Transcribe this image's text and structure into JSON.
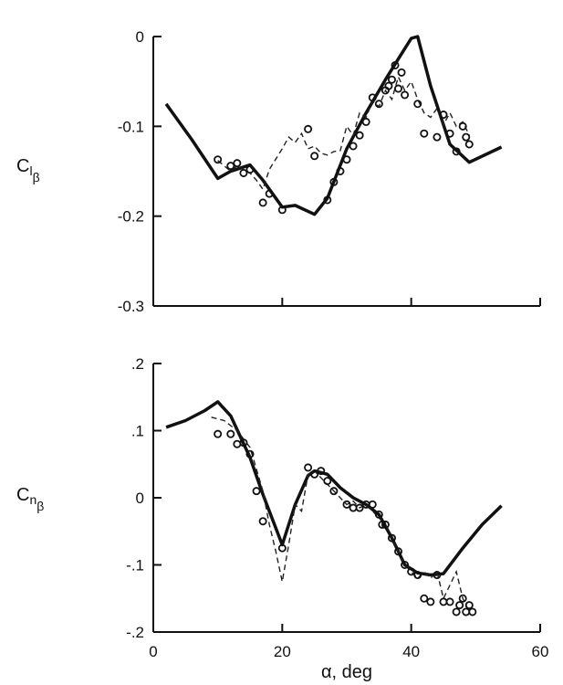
{
  "chart_data": [
    {
      "type": "line",
      "panel": "top",
      "ylabel_main": "C",
      "ylabel_sub1": "l",
      "ylabel_sub2": "β",
      "xlim": [
        0,
        60
      ],
      "ylim": [
        -0.3,
        0
      ],
      "yticks": [
        0,
        -0.1,
        -0.2,
        -0.3
      ],
      "ytick_labels": [
        "0",
        "-0.1",
        "-0.2",
        "-0.3"
      ],
      "xticks": [
        0,
        20,
        40,
        60
      ],
      "series": [
        {
          "style": "solid-thick",
          "x": [
            2,
            6,
            10,
            12,
            15,
            17,
            20,
            22,
            25,
            27,
            30,
            33,
            36,
            38,
            40,
            41,
            43,
            46,
            49,
            54
          ],
          "y": [
            -0.075,
            -0.115,
            -0.158,
            -0.15,
            -0.143,
            -0.16,
            -0.19,
            -0.188,
            -0.198,
            -0.18,
            -0.125,
            -0.085,
            -0.048,
            -0.025,
            -0.002,
            0.0,
            -0.055,
            -0.12,
            -0.14,
            -0.123
          ]
        },
        {
          "style": "dashed",
          "x": [
            10,
            12,
            13,
            15,
            16,
            17,
            18,
            20,
            21,
            22,
            23,
            24,
            25,
            26,
            27,
            28,
            29,
            30,
            31,
            32,
            33,
            34,
            35,
            36,
            37,
            38,
            39,
            40,
            41,
            42,
            43,
            44,
            45,
            46,
            47,
            48,
            49
          ],
          "y": [
            -0.138,
            -0.15,
            -0.144,
            -0.152,
            -0.16,
            -0.17,
            -0.148,
            -0.125,
            -0.112,
            -0.118,
            -0.108,
            -0.125,
            -0.122,
            -0.13,
            -0.132,
            -0.128,
            -0.127,
            -0.1,
            -0.11,
            -0.085,
            -0.09,
            -0.072,
            -0.078,
            -0.06,
            -0.07,
            -0.045,
            -0.06,
            -0.05,
            -0.07,
            -0.085,
            -0.09,
            -0.08,
            -0.098,
            -0.085,
            -0.1,
            -0.095,
            -0.11
          ]
        },
        {
          "style": "circles",
          "x": [
            10,
            12,
            13,
            14,
            15,
            17,
            18,
            20,
            24,
            25,
            27,
            28,
            29,
            30,
            31,
            32,
            33,
            34,
            35,
            36,
            36.5,
            37,
            37.5,
            38,
            38.5,
            39,
            41,
            42,
            44,
            45,
            46,
            47,
            48,
            48.5,
            49
          ],
          "y": [
            -0.137,
            -0.144,
            -0.141,
            -0.152,
            -0.148,
            -0.185,
            -0.175,
            -0.193,
            -0.103,
            -0.133,
            -0.182,
            -0.162,
            -0.15,
            -0.137,
            -0.122,
            -0.11,
            -0.095,
            -0.068,
            -0.075,
            -0.06,
            -0.055,
            -0.048,
            -0.032,
            -0.058,
            -0.04,
            -0.065,
            -0.075,
            -0.108,
            -0.112,
            -0.087,
            -0.108,
            -0.128,
            -0.1,
            -0.112,
            -0.12
          ]
        }
      ]
    },
    {
      "type": "line",
      "panel": "bottom",
      "ylabel_main": "C",
      "ylabel_sub1": "n",
      "ylabel_sub2": "β",
      "xlabel": "α, deg",
      "xlim": [
        0,
        60
      ],
      "ylim": [
        -0.2,
        0.2
      ],
      "yticks": [
        0.2,
        0.1,
        0,
        -0.1,
        -0.2
      ],
      "ytick_labels": [
        ".2",
        ".1",
        "0",
        "-.1",
        "-.2"
      ],
      "xticks": [
        0,
        20,
        40,
        60
      ],
      "xtick_labels": [
        "0",
        "20",
        "40",
        "60"
      ],
      "series": [
        {
          "style": "solid-thick",
          "x": [
            2,
            5,
            8,
            10,
            12,
            15,
            17,
            20,
            22,
            24,
            25,
            27,
            29,
            31,
            33,
            35,
            37,
            39,
            41,
            43,
            45,
            48,
            51,
            54
          ],
          "y": [
            0.105,
            0.115,
            0.13,
            0.143,
            0.122,
            0.06,
            0.005,
            -0.07,
            -0.01,
            0.033,
            0.04,
            0.035,
            0.015,
            0.0,
            -0.01,
            -0.025,
            -0.06,
            -0.1,
            -0.112,
            -0.115,
            -0.113,
            -0.075,
            -0.04,
            -0.012
          ]
        },
        {
          "style": "dashed",
          "x": [
            9,
            11,
            13,
            15,
            17,
            18,
            19,
            20,
            21,
            22,
            23,
            24,
            25,
            26,
            27,
            28,
            29,
            30,
            31,
            32,
            33,
            34,
            35,
            36,
            37,
            38,
            39,
            40,
            41,
            42,
            43,
            44,
            45,
            46,
            47,
            48,
            49
          ],
          "y": [
            0.12,
            0.115,
            0.1,
            0.075,
            0.01,
            -0.04,
            -0.08,
            -0.125,
            -0.07,
            -0.01,
            -0.02,
            0.035,
            0.04,
            0.03,
            0.02,
            0.01,
            0.0,
            -0.01,
            -0.005,
            -0.015,
            -0.01,
            -0.02,
            -0.03,
            -0.04,
            -0.06,
            -0.08,
            -0.1,
            -0.11,
            -0.12,
            -0.11,
            -0.12,
            -0.11,
            -0.15,
            -0.13,
            -0.11,
            -0.15,
            -0.17
          ]
        },
        {
          "style": "circles",
          "x": [
            10,
            12,
            13,
            14,
            15,
            16,
            17,
            20,
            24,
            25,
            26,
            27,
            28,
            30,
            31,
            32,
            33,
            34,
            35,
            35.5,
            36,
            37,
            38,
            39,
            40,
            41,
            42,
            43,
            44,
            45,
            46,
            47,
            47.5,
            48,
            48.5,
            49,
            49.5
          ],
          "y": [
            0.095,
            0.095,
            0.08,
            0.082,
            0.065,
            0.01,
            -0.035,
            -0.075,
            0.045,
            0.035,
            0.04,
            0.025,
            0.01,
            -0.01,
            -0.015,
            -0.015,
            -0.01,
            -0.01,
            -0.025,
            -0.04,
            -0.04,
            -0.06,
            -0.08,
            -0.1,
            -0.11,
            -0.115,
            -0.15,
            -0.155,
            -0.115,
            -0.155,
            -0.155,
            -0.17,
            -0.16,
            -0.15,
            -0.17,
            -0.16,
            -0.17
          ]
        }
      ]
    }
  ]
}
